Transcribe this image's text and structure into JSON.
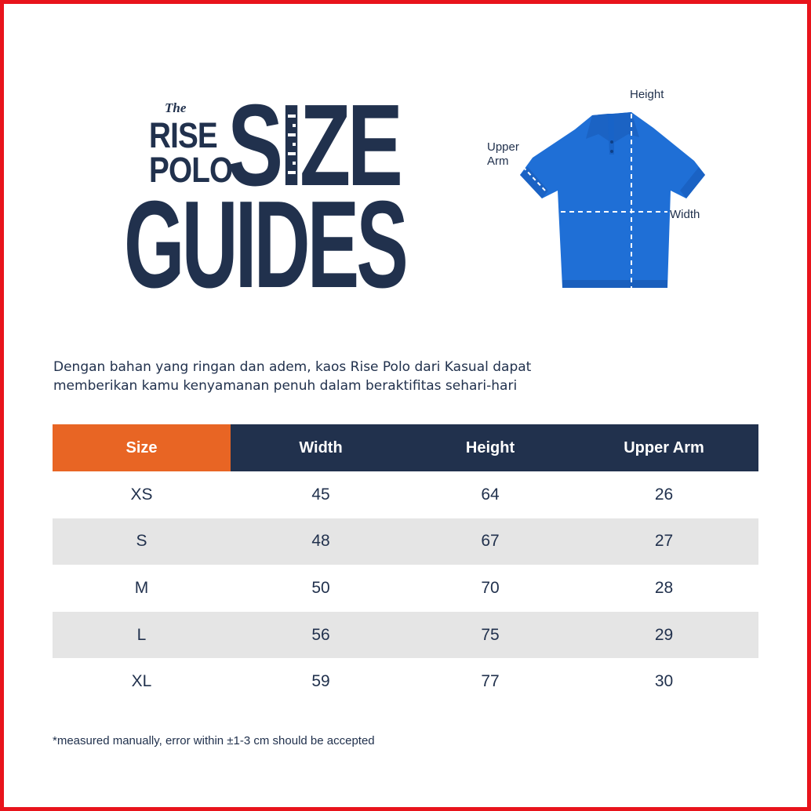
{
  "title": {
    "the": "The",
    "brand_line1": "RISE",
    "brand_line2": "POLO",
    "size": "SIZE",
    "guides": "GUIDES"
  },
  "diagram": {
    "height_label": "Height",
    "upper_arm_label_line1": "Upper",
    "upper_arm_label_line2": "Arm",
    "width_label": "Width",
    "shirt_color": "#1f6fd6"
  },
  "description": {
    "line1": "Dengan bahan yang ringan dan adem, kaos Rise Polo dari Kasual dapat",
    "line2": "memberikan kamu kenyamanan penuh dalam beraktifitas sehari-hari"
  },
  "table": {
    "headers": [
      "Size",
      "Width",
      "Height",
      "Upper Arm"
    ],
    "rows": [
      [
        "XS",
        "45",
        "64",
        "26"
      ],
      [
        "S",
        "48",
        "67",
        "27"
      ],
      [
        "M",
        "50",
        "70",
        "28"
      ],
      [
        "L",
        "56",
        "75",
        "29"
      ],
      [
        "XL",
        "59",
        "77",
        "30"
      ]
    ]
  },
  "note": "*measured manually, error within  ±1-3 cm should be accepted",
  "colors": {
    "navy": "#21314d",
    "orange": "#e86524",
    "row_alt": "#e5e5e5",
    "frame": "#e8141c"
  }
}
